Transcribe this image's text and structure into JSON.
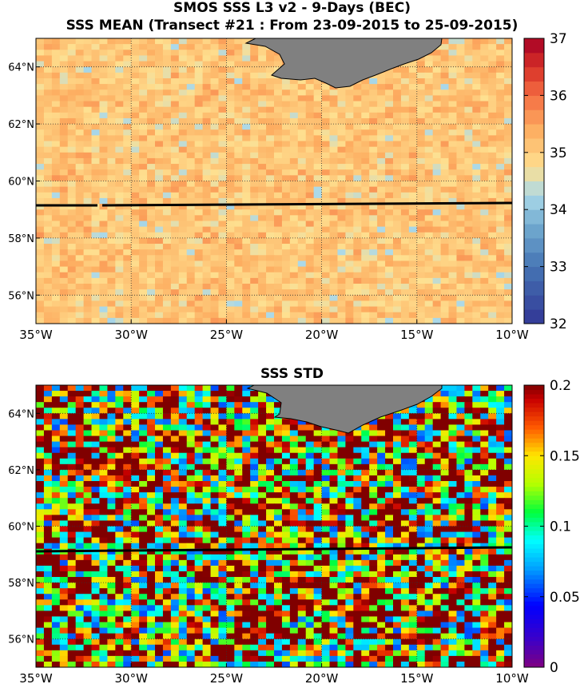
{
  "titles": {
    "line1": "SMOS SSS L3 v2 - 9-Days (BEC)",
    "line2": "SSS MEAN (Transect #21 : From 23-09-2015 to 25-09-2015)",
    "bottom": "SSS STD"
  },
  "axes": {
    "lon_ticks": [
      "35°W",
      "30°W",
      "25°W",
      "20°W",
      "15°W",
      "10°W"
    ],
    "lat_ticks": [
      "56°N",
      "58°N",
      "60°N",
      "62°N",
      "64°N"
    ],
    "lon_range": [
      -35,
      -10
    ],
    "lat_range": [
      55,
      65
    ]
  },
  "colorbars": {
    "mean": {
      "min": 32,
      "max": 37,
      "ticks": [
        "32",
        "33",
        "34",
        "35",
        "36",
        "37"
      ]
    },
    "std": {
      "min": 0,
      "max": 0.2,
      "ticks": [
        "0",
        "0.05",
        "0.1",
        "0.15",
        "0.2"
      ]
    }
  },
  "transect": {
    "label": "Transect #21",
    "lat_start": 59.3,
    "lat_end": 59.5,
    "lon_start": -35,
    "lon_end": -10
  },
  "colors": {
    "land": "#808080",
    "transect_line": "#000000"
  }
}
